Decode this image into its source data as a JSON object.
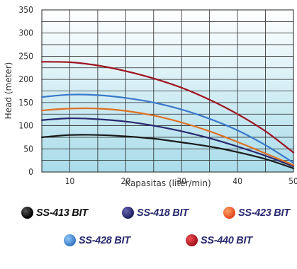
{
  "chart_data": {
    "type": "line",
    "xlabel": "Kapasitas (liter/min)",
    "ylabel": "Head (meter)",
    "xlim": [
      5,
      50
    ],
    "ylim": [
      0,
      350
    ],
    "xticks": [
      10,
      20,
      30,
      40,
      50
    ],
    "yticks": [
      0,
      50,
      100,
      150,
      200,
      250,
      300,
      350
    ],
    "grid": true,
    "legend_position": "bottom",
    "series": [
      {
        "name": "SS-413 BIT",
        "color": "#1a1a1a",
        "points": [
          [
            5,
            75
          ],
          [
            10,
            80
          ],
          [
            15,
            80
          ],
          [
            20,
            77
          ],
          [
            25,
            72
          ],
          [
            30,
            64
          ],
          [
            35,
            55
          ],
          [
            40,
            43
          ],
          [
            45,
            28
          ],
          [
            50,
            8
          ]
        ]
      },
      {
        "name": "SS-418 BIT",
        "color": "#28286e",
        "points": [
          [
            5,
            112
          ],
          [
            10,
            116
          ],
          [
            15,
            114
          ],
          [
            20,
            109
          ],
          [
            25,
            100
          ],
          [
            30,
            88
          ],
          [
            35,
            73
          ],
          [
            40,
            55
          ],
          [
            45,
            35
          ],
          [
            50,
            12
          ]
        ]
      },
      {
        "name": "SS-423 BIT",
        "color": "#e07020",
        "points": [
          [
            5,
            133
          ],
          [
            10,
            137
          ],
          [
            15,
            137
          ],
          [
            20,
            132
          ],
          [
            25,
            122
          ],
          [
            30,
            107
          ],
          [
            35,
            88
          ],
          [
            40,
            65
          ],
          [
            45,
            40
          ],
          [
            50,
            15
          ]
        ]
      },
      {
        "name": "SS-428 BIT",
        "color": "#3a78c8",
        "points": [
          [
            5,
            162
          ],
          [
            10,
            167
          ],
          [
            15,
            166
          ],
          [
            20,
            160
          ],
          [
            25,
            150
          ],
          [
            30,
            135
          ],
          [
            35,
            115
          ],
          [
            40,
            90
          ],
          [
            45,
            58
          ],
          [
            50,
            20
          ]
        ]
      },
      {
        "name": "SS-440 BIT",
        "color": "#a01020",
        "points": [
          [
            5,
            238
          ],
          [
            10,
            237
          ],
          [
            15,
            230
          ],
          [
            20,
            218
          ],
          [
            25,
            202
          ],
          [
            30,
            182
          ],
          [
            35,
            156
          ],
          [
            40,
            125
          ],
          [
            45,
            88
          ],
          [
            50,
            42
          ]
        ]
      }
    ]
  }
}
